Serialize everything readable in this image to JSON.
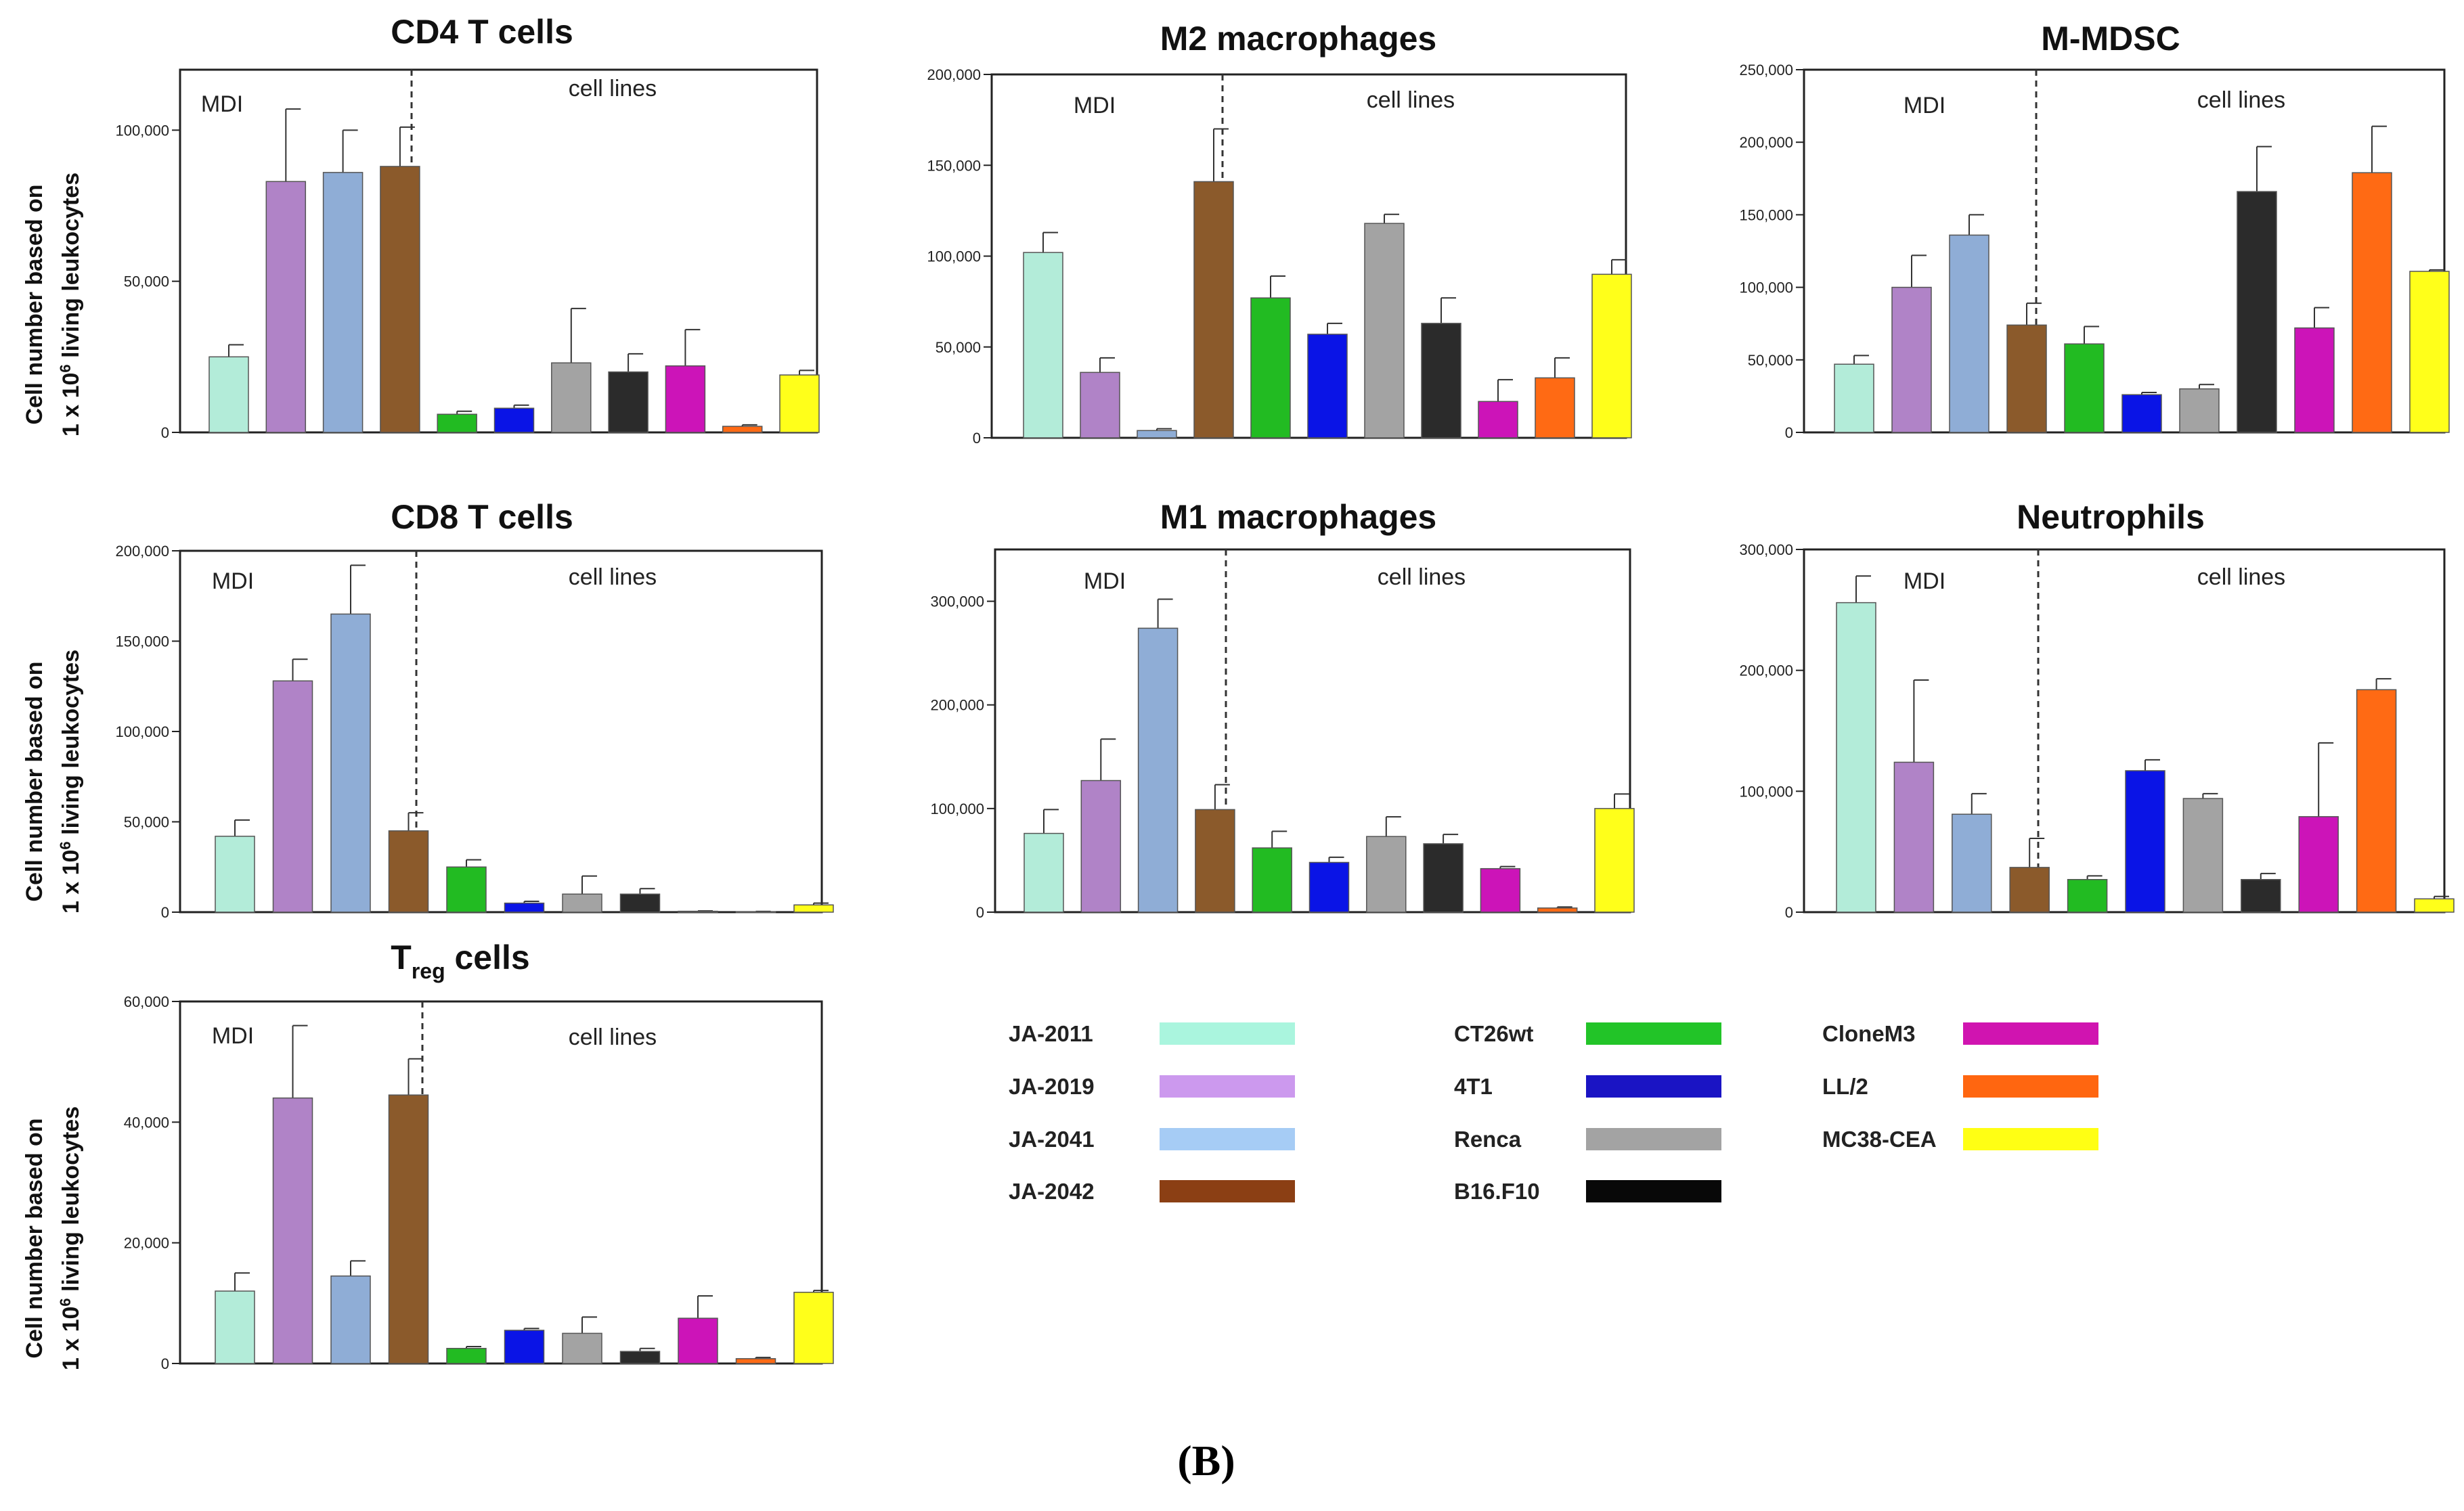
{
  "figure_label": "(B)",
  "colors": {
    "JA-2011": "#b3ecd9",
    "JA-2019": "#b083c7",
    "JA-2041": "#8fadd6",
    "JA-2042": "#8b5a2b",
    "CT26wt": "#22bb22",
    "4T1": "#0a14e6",
    "Renca": "#a3a3a3",
    "B16.F10": "#2b2b2b",
    "CloneM3": "#cc14b8",
    "LL/2": "#ff6a14",
    "MC38-CEA": "#ffff1a"
  },
  "legend_colors": {
    "JA-2011": "#aaf5de",
    "JA-2019": "#cc99ee",
    "JA-2041": "#a6ccf5",
    "JA-2042": "#8b3f14",
    "CT26wt": "#22c428",
    "4T1": "#1a14c4",
    "Renca": "#a3a3a3",
    "B16.F10": "#080808",
    "CloneM3": "#d014b0",
    "LL/2": "#ff6610",
    "MC38-CEA": "#ffff14"
  },
  "legend": [
    [
      "JA-2011",
      "JA-2019",
      "JA-2041",
      "JA-2042"
    ],
    [
      "CT26wt",
      "4T1",
      "Renca",
      "B16.F10"
    ],
    [
      "CloneM3",
      "LL/2",
      "MC38-CEA"
    ]
  ],
  "y_axis_label": {
    "line1": "Cell number based on",
    "line2_prefix": "1 x 10",
    "line2_sup": "6",
    "line2_suffix": " living leukocytes"
  },
  "group_labels": {
    "left": "MDI",
    "right": "cell lines"
  },
  "chart_data": [
    {
      "id": "cd4",
      "type": "bar",
      "title": "CD4 T cells",
      "ylim": [
        0,
        120000
      ],
      "yticks": [
        0,
        50000,
        100000
      ],
      "ytick_labels": [
        "0",
        "50,000",
        "100,000"
      ],
      "categories": [
        "JA-2011",
        "JA-2019",
        "JA-2041",
        "JA-2042",
        "CT26wt",
        "4T1",
        "Renca",
        "B16.F10",
        "CloneM3",
        "LL/2",
        "MC38-CEA"
      ],
      "values": [
        25000,
        83000,
        86000,
        88000,
        6000,
        8000,
        23000,
        20000,
        22000,
        2000,
        19000
      ],
      "errors": [
        4000,
        24000,
        14000,
        13000,
        1000,
        1000,
        18000,
        6000,
        12000,
        500,
        1500
      ]
    },
    {
      "id": "m2",
      "type": "bar",
      "title": "M2 macrophages",
      "ylim": [
        0,
        200000
      ],
      "yticks": [
        0,
        50000,
        100000,
        150000,
        200000
      ],
      "ytick_labels": [
        "0",
        "50,000",
        "100,000",
        "150,000",
        "200,000"
      ],
      "categories": [
        "JA-2011",
        "JA-2019",
        "JA-2041",
        "JA-2042",
        "CT26wt",
        "4T1",
        "Renca",
        "B16.F10",
        "CloneM3",
        "LL/2",
        "MC38-CEA"
      ],
      "values": [
        102000,
        36000,
        4000,
        141000,
        77000,
        57000,
        118000,
        63000,
        20000,
        33000,
        90000
      ],
      "errors": [
        11000,
        8000,
        1000,
        29000,
        12000,
        6000,
        5000,
        14000,
        12000,
        11000,
        8000
      ]
    },
    {
      "id": "mmdsc",
      "type": "bar",
      "title": "M-MDSC",
      "ylim": [
        0,
        250000
      ],
      "yticks": [
        0,
        50000,
        100000,
        150000,
        200000,
        250000
      ],
      "ytick_labels": [
        "0",
        "50,000",
        "100,000",
        "150,000",
        "200,000",
        "250,000"
      ],
      "categories": [
        "JA-2011",
        "JA-2019",
        "JA-2041",
        "JA-2042",
        "CT26wt",
        "4T1",
        "Renca",
        "B16.F10",
        "CloneM3",
        "LL/2",
        "MC38-CEA"
      ],
      "values": [
        47000,
        100000,
        136000,
        74000,
        61000,
        26000,
        30000,
        166000,
        72000,
        179000,
        111000
      ],
      "errors": [
        6000,
        22000,
        14000,
        15000,
        12000,
        1500,
        3000,
        31000,
        14000,
        32000,
        1000
      ]
    },
    {
      "id": "cd8",
      "type": "bar",
      "title": "CD8 T cells",
      "ylim": [
        0,
        200000
      ],
      "yticks": [
        0,
        50000,
        100000,
        150000,
        200000
      ],
      "ytick_labels": [
        "0",
        "50,000",
        "100,000",
        "150,000",
        "200,000"
      ],
      "categories": [
        "JA-2011",
        "JA-2019",
        "JA-2041",
        "JA-2042",
        "CT26wt",
        "4T1",
        "Renca",
        "B16.F10",
        "CloneM3",
        "LL/2",
        "MC38-CEA"
      ],
      "values": [
        42000,
        128000,
        165000,
        45000,
        25000,
        5000,
        10000,
        10000,
        500,
        300,
        4000
      ],
      "errors": [
        9000,
        12000,
        27000,
        10000,
        4000,
        1000,
        10000,
        3000,
        200,
        100,
        1000
      ]
    },
    {
      "id": "m1",
      "type": "bar",
      "title": "M1 macrophages",
      "ylim": [
        0,
        350000
      ],
      "yticks": [
        0,
        100000,
        200000,
        300000
      ],
      "ytick_labels": [
        "0",
        "100,000",
        "200,000",
        "300,000"
      ],
      "categories": [
        "JA-2011",
        "JA-2019",
        "JA-2041",
        "JA-2042",
        "CT26wt",
        "4T1",
        "Renca",
        "B16.F10",
        "CloneM3",
        "LL/2",
        "MC38-CEA"
      ],
      "values": [
        76000,
        127000,
        274000,
        99000,
        62000,
        48000,
        73000,
        66000,
        42000,
        4000,
        100000
      ],
      "errors": [
        23000,
        40000,
        28000,
        24000,
        16000,
        5000,
        19000,
        9000,
        2000,
        1000,
        14000
      ]
    },
    {
      "id": "neut",
      "type": "bar",
      "title": "Neutrophils",
      "ylim": [
        0,
        300000
      ],
      "yticks": [
        0,
        100000,
        200000,
        300000
      ],
      "ytick_labels": [
        "0",
        "100,000",
        "200,000",
        "300,000"
      ],
      "categories": [
        "JA-2011",
        "JA-2019",
        "JA-2041",
        "JA-2042",
        "CT26wt",
        "4T1",
        "Renca",
        "B16.F10",
        "CloneM3",
        "LL/2",
        "MC38-CEA"
      ],
      "values": [
        256000,
        124000,
        81000,
        37000,
        27000,
        117000,
        94000,
        27000,
        79000,
        184000,
        11000
      ],
      "errors": [
        22000,
        68000,
        17000,
        24000,
        3000,
        9000,
        4000,
        5000,
        61000,
        9000,
        2000
      ]
    },
    {
      "id": "treg",
      "type": "bar",
      "title": "T",
      "title_sub": "reg",
      "title_suffix": " cells",
      "ylim": [
        0,
        60000
      ],
      "yticks": [
        0,
        20000,
        40000,
        60000
      ],
      "ytick_labels": [
        "0",
        "20,000",
        "40,000",
        "60,000"
      ],
      "categories": [
        "JA-2011",
        "JA-2019",
        "JA-2041",
        "JA-2042",
        "CT26wt",
        "4T1",
        "Renca",
        "B16.F10",
        "CloneM3",
        "LL/2",
        "MC38-CEA"
      ],
      "values": [
        12000,
        44000,
        14500,
        44500,
        2500,
        5500,
        5000,
        2000,
        7500,
        800,
        11800
      ],
      "errors": [
        3000,
        12000,
        2500,
        6000,
        300,
        300,
        2700,
        500,
        3700,
        200,
        300
      ]
    }
  ]
}
